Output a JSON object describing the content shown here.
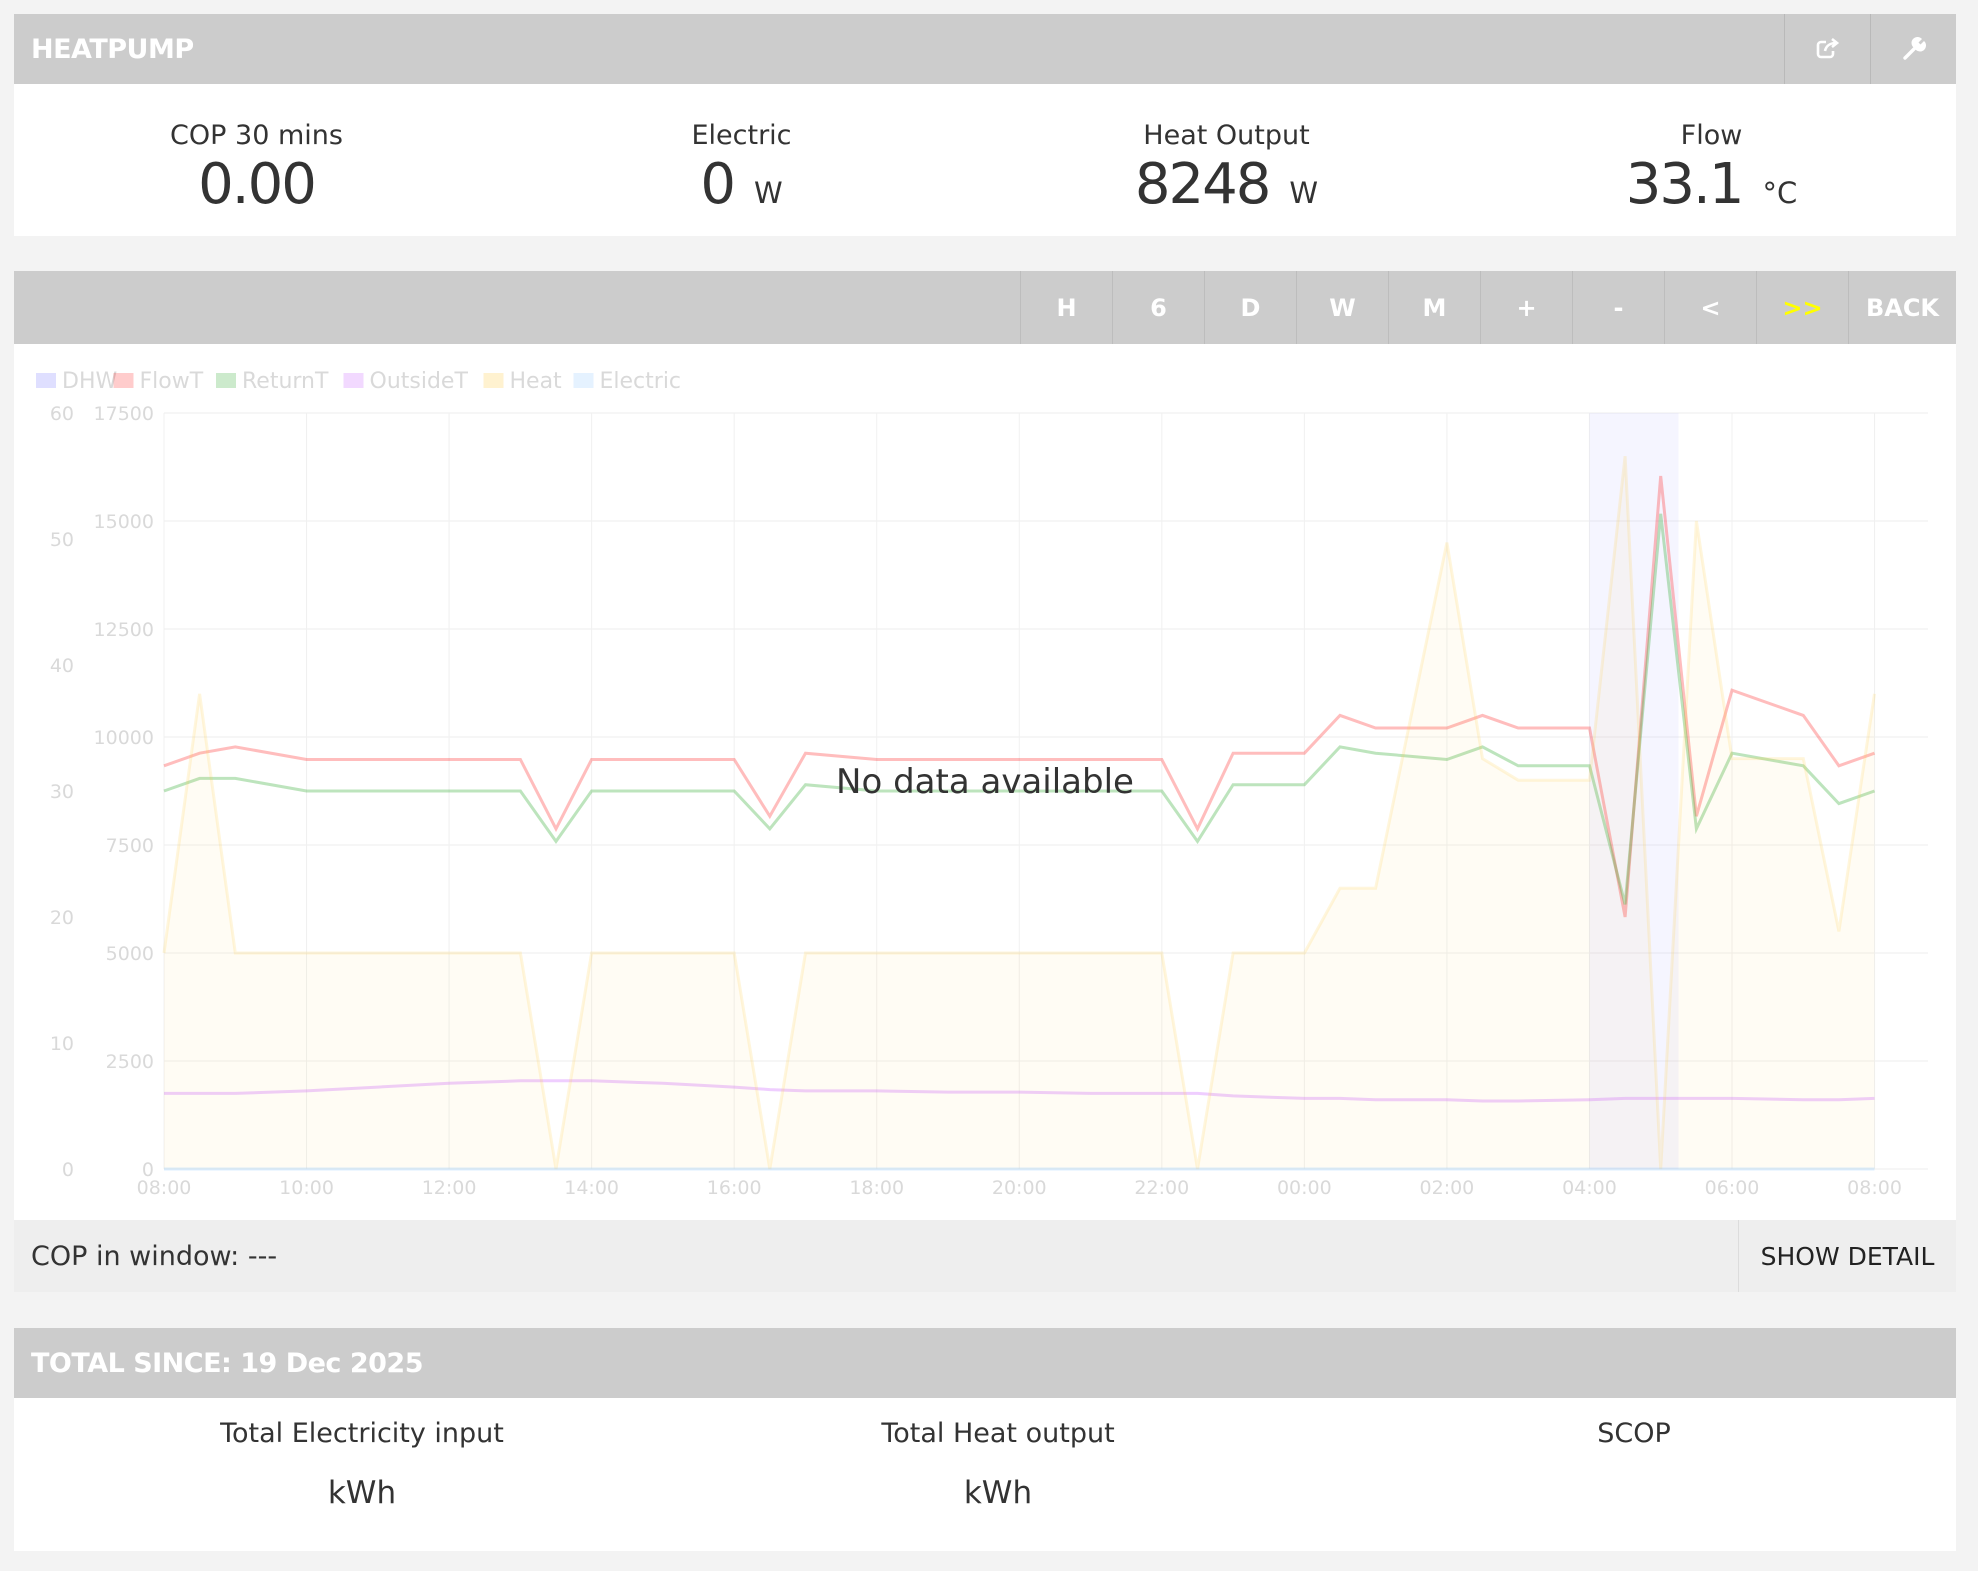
{
  "header": {
    "title": "HEATPUMP",
    "icons": {
      "share": "share-icon",
      "settings": "wrench-icon"
    }
  },
  "stats": [
    {
      "label": "COP 30 mins",
      "value": "0.00",
      "unit": ""
    },
    {
      "label": "Electric",
      "value": "0",
      "unit": "W"
    },
    {
      "label": "Heat Output",
      "value": "8248",
      "unit": "W"
    },
    {
      "label": "Flow",
      "value": "33.1",
      "unit": "°C"
    }
  ],
  "toolbar": {
    "buttons": [
      "H",
      "6",
      "D",
      "W",
      "M",
      "+",
      "-",
      "<",
      ">>",
      "BACK"
    ],
    "active_index": 8,
    "active_color": "#ffff00"
  },
  "chart": {
    "no_data_text": "No data available",
    "legend": [
      "DHW",
      "FlowT",
      "ReturnT",
      "OutsideT",
      "Heat",
      "Electric"
    ],
    "colors": {
      "DHW": "#8080ff",
      "FlowT": "#ff3333",
      "ReturnT": "#33aa33",
      "OutsideT": "#cc66ff",
      "Heat": "#ffcc44",
      "Electric": "#99ccff"
    },
    "left_axis_ticks": [
      "0",
      "10",
      "20",
      "30",
      "40",
      "50",
      "60"
    ],
    "right_axis_ticks": [
      "0",
      "2500",
      "5000",
      "7500",
      "10000",
      "12500",
      "15000",
      "17500"
    ],
    "x_ticks": [
      "08:00",
      "10:00",
      "12:00",
      "14:00",
      "16:00",
      "18:00",
      "20:00",
      "22:00",
      "00:00",
      "02:00",
      "04:00",
      "06:00",
      "08:00"
    ]
  },
  "chart_data": {
    "type": "line",
    "title": "",
    "xlabel": "",
    "ylabel": "",
    "left_ylim": [
      0,
      60
    ],
    "right_ylim": [
      0,
      17500
    ],
    "x": [
      "08:00",
      "08:30",
      "09:00",
      "10:00",
      "11:00",
      "12:00",
      "13:00",
      "13:30",
      "14:00",
      "15:00",
      "16:00",
      "16:30",
      "17:00",
      "18:00",
      "19:00",
      "20:00",
      "21:00",
      "22:00",
      "22:30",
      "23:00",
      "00:00",
      "00:30",
      "01:00",
      "02:00",
      "02:30",
      "03:00",
      "04:00",
      "04:30",
      "05:00",
      "05:30",
      "06:00",
      "07:00",
      "07:30",
      "08:00"
    ],
    "series": [
      {
        "name": "FlowT",
        "axis": "left",
        "values": [
          32,
          33,
          33.5,
          32.5,
          32.5,
          32.5,
          32.5,
          27,
          32.5,
          32.5,
          32.5,
          28,
          33,
          32.5,
          32.5,
          32.5,
          32.5,
          32.5,
          27,
          33,
          33,
          36,
          35,
          35,
          36,
          35,
          35,
          20,
          55,
          28,
          38,
          36,
          32,
          33
        ]
      },
      {
        "name": "ReturnT",
        "axis": "left",
        "values": [
          30,
          31,
          31,
          30,
          30,
          30,
          30,
          26,
          30,
          30,
          30,
          27,
          30.5,
          30,
          30,
          30,
          30,
          30,
          26,
          30.5,
          30.5,
          33.5,
          33,
          32.5,
          33.5,
          32,
          32,
          21,
          52,
          27,
          33,
          32,
          29,
          30
        ]
      },
      {
        "name": "OutsideT",
        "axis": "left",
        "values": [
          6,
          6,
          6,
          6.2,
          6.5,
          6.8,
          7,
          7,
          7,
          6.8,
          6.5,
          6.3,
          6.2,
          6.2,
          6.1,
          6.1,
          6,
          6,
          6,
          5.8,
          5.6,
          5.6,
          5.5,
          5.5,
          5.4,
          5.4,
          5.5,
          5.6,
          5.6,
          5.6,
          5.6,
          5.5,
          5.5,
          5.6
        ]
      },
      {
        "name": "Heat",
        "axis": "right",
        "values": [
          5000,
          11000,
          5000,
          5000,
          5000,
          5000,
          5000,
          0,
          5000,
          5000,
          5000,
          0,
          5000,
          5000,
          5000,
          5000,
          5000,
          5000,
          0,
          5000,
          5000,
          6500,
          6500,
          14500,
          9500,
          9000,
          9000,
          16500,
          0,
          15000,
          9500,
          9500,
          5500,
          11000
        ]
      },
      {
        "name": "Electric",
        "axis": "right",
        "values": [
          0,
          0,
          0,
          0,
          0,
          0,
          0,
          0,
          0,
          0,
          0,
          0,
          0,
          0,
          0,
          0,
          0,
          0,
          0,
          0,
          0,
          0,
          0,
          0,
          0,
          0,
          0,
          0,
          0,
          0,
          0,
          0,
          0,
          0
        ]
      }
    ],
    "dhw_window": [
      "04:00",
      "05:15"
    ],
    "legend_position": "top-left",
    "grid": true
  },
  "cop_window": {
    "label": "COP in window:",
    "value": "---",
    "detail_button": "SHOW DETAIL"
  },
  "totals": {
    "title": "TOTAL SINCE: 19 Dec 2025",
    "items": [
      {
        "label": "Total Electricity input",
        "unit": "kWh"
      },
      {
        "label": "Total Heat output",
        "unit": "kWh"
      },
      {
        "label": "SCOP",
        "unit": ""
      }
    ]
  }
}
